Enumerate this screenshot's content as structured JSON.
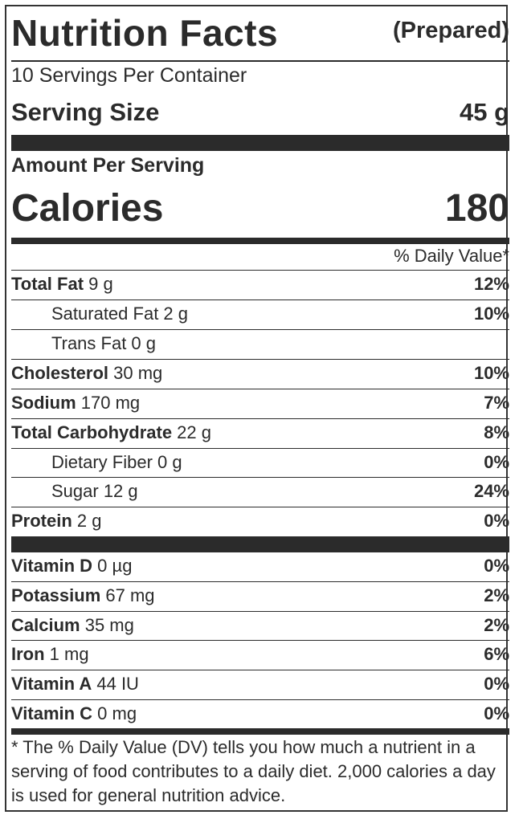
{
  "header": {
    "title": "Nutrition Facts",
    "subtitle": "(Prepared)"
  },
  "servings": {
    "per_container": "10 Servings Per Container",
    "size_label": "Serving Size",
    "size_value": "45 g"
  },
  "calories": {
    "amount_label": "Amount Per Serving",
    "label": "Calories",
    "value": "180"
  },
  "dv_header": "% Daily Value*",
  "nutrients": [
    {
      "name": "Total Fat",
      "amount": " 9 g",
      "dv": "12%"
    },
    {
      "name": "Saturated Fat 2 g",
      "amount": "",
      "dv": "10%"
    },
    {
      "name": "Trans Fat 0 g",
      "amount": "",
      "dv": ""
    },
    {
      "name": "Cholesterol",
      "amount": " 30 mg",
      "dv": "10%"
    },
    {
      "name": "Sodium",
      "amount": " 170 mg",
      "dv": "7%"
    },
    {
      "name": "Total Carbohydrate",
      "amount": " 22 g",
      "dv": "8%"
    },
    {
      "name": "Dietary Fiber 0 g",
      "amount": "",
      "dv": "0%"
    },
    {
      "name": "Sugar 12 g",
      "amount": "",
      "dv": "24%"
    },
    {
      "name": "Protein",
      "amount": " 2 g",
      "dv": "0%"
    }
  ],
  "vitamins": [
    {
      "name": "Vitamin D",
      "amount": " 0 µg",
      "dv": "0%"
    },
    {
      "name": "Potassium",
      "amount": " 67 mg",
      "dv": "2%"
    },
    {
      "name": "Calcium",
      "amount": " 35 mg",
      "dv": "2%"
    },
    {
      "name": "Iron",
      "amount": " 1 mg",
      "dv": "6%"
    },
    {
      "name": "Vitamin A",
      "amount": " 44 IU",
      "dv": "0%"
    },
    {
      "name": "Vitamin C",
      "amount": " 0 mg",
      "dv": "0%"
    }
  ],
  "footnote": "* The % Daily Value (DV) tells you how much a nutrient in a serving of food contributes to a daily diet. 2,000 calories a day is used for general nutrition advice."
}
